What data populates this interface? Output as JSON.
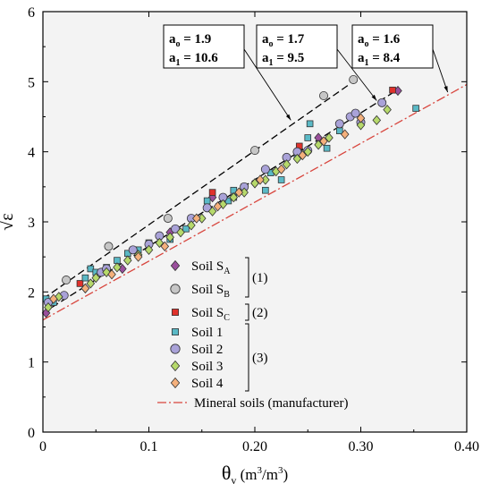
{
  "chart_data": {
    "type": "scatter",
    "xlabel_symbol": "θ",
    "xlabel_sub": "v",
    "xlabel_unit_open": " (m",
    "xlabel_unit_mid": "/m",
    "xlabel_unit_close": ")",
    "xlabel_sup": "3",
    "ylabel": "√ε",
    "xlim": [
      0,
      0.4
    ],
    "ylim": [
      0,
      6
    ],
    "xticks": [
      "0",
      "0.1",
      "0.20",
      "0.30",
      "0.40"
    ],
    "xtick_values": [
      0,
      0.1,
      0.2,
      0.3,
      0.4
    ],
    "yticks": [
      "0",
      "1",
      "2",
      "3",
      "4",
      "5",
      "6"
    ],
    "ytick_values": [
      0,
      1,
      2,
      3,
      4,
      5,
      6
    ],
    "background": "#f3f3f3",
    "series": [
      {
        "name": "Soil S",
        "sub": "A",
        "marker": "diamond",
        "color": "#9a4f9c",
        "points": [
          [
            0.003,
            1.7
          ],
          [
            0.075,
            2.33
          ],
          [
            0.12,
            2.85
          ],
          [
            0.16,
            3.35
          ],
          [
            0.2,
            3.55
          ],
          [
            0.26,
            4.2
          ],
          [
            0.335,
            4.87
          ]
        ]
      },
      {
        "name": "Soil S",
        "sub": "B",
        "marker": "circle",
        "color": "#c6c6c6",
        "points": [
          [
            0.022,
            2.17
          ],
          [
            0.062,
            2.65
          ],
          [
            0.118,
            3.05
          ],
          [
            0.2,
            4.02
          ],
          [
            0.265,
            4.8
          ],
          [
            0.293,
            5.03
          ]
        ]
      },
      {
        "name": "Soil S",
        "sub": "C",
        "marker": "square",
        "color": "#e0312b",
        "points": [
          [
            0.035,
            2.12
          ],
          [
            0.16,
            3.42
          ],
          [
            0.242,
            4.08
          ],
          [
            0.33,
            4.88
          ]
        ]
      },
      {
        "name": "Soil 1",
        "marker": "square",
        "color": "#5ab9c6",
        "points": [
          [
            0.003,
            1.9
          ],
          [
            0.01,
            1.85
          ],
          [
            0.04,
            2.2
          ],
          [
            0.045,
            2.33
          ],
          [
            0.05,
            2.28
          ],
          [
            0.06,
            2.35
          ],
          [
            0.07,
            2.45
          ],
          [
            0.08,
            2.55
          ],
          [
            0.09,
            2.6
          ],
          [
            0.1,
            2.7
          ],
          [
            0.12,
            2.75
          ],
          [
            0.135,
            2.9
          ],
          [
            0.155,
            3.3
          ],
          [
            0.175,
            3.3
          ],
          [
            0.18,
            3.45
          ],
          [
            0.19,
            3.5
          ],
          [
            0.21,
            3.45
          ],
          [
            0.215,
            3.7
          ],
          [
            0.24,
            3.95
          ],
          [
            0.25,
            4.2
          ],
          [
            0.252,
            4.4
          ],
          [
            0.268,
            4.05
          ],
          [
            0.28,
            4.3
          ],
          [
            0.352,
            4.62
          ],
          [
            0.18,
            3.35
          ],
          [
            0.225,
            3.6
          ]
        ]
      },
      {
        "name": "Soil 2",
        "marker": "circle",
        "color": "#a9a2d8",
        "points": [
          [
            0.005,
            1.85
          ],
          [
            0.02,
            1.95
          ],
          [
            0.055,
            2.28
          ],
          [
            0.06,
            2.33
          ],
          [
            0.085,
            2.6
          ],
          [
            0.1,
            2.68
          ],
          [
            0.11,
            2.8
          ],
          [
            0.125,
            2.9
          ],
          [
            0.14,
            3.05
          ],
          [
            0.155,
            3.2
          ],
          [
            0.17,
            3.35
          ],
          [
            0.19,
            3.5
          ],
          [
            0.21,
            3.75
          ],
          [
            0.23,
            3.92
          ],
          [
            0.24,
            4.0
          ],
          [
            0.25,
            4.02
          ],
          [
            0.28,
            4.4
          ],
          [
            0.29,
            4.5
          ],
          [
            0.295,
            4.55
          ],
          [
            0.3,
            4.42
          ],
          [
            0.32,
            4.7
          ]
        ]
      },
      {
        "name": "Soil 3",
        "marker": "diamond",
        "color": "#b6d96b",
        "points": [
          [
            0.005,
            1.78
          ],
          [
            0.015,
            1.93
          ],
          [
            0.04,
            2.05
          ],
          [
            0.045,
            2.12
          ],
          [
            0.05,
            2.2
          ],
          [
            0.06,
            2.28
          ],
          [
            0.07,
            2.35
          ],
          [
            0.08,
            2.45
          ],
          [
            0.09,
            2.53
          ],
          [
            0.1,
            2.6
          ],
          [
            0.11,
            2.7
          ],
          [
            0.12,
            2.78
          ],
          [
            0.13,
            2.85
          ],
          [
            0.14,
            2.95
          ],
          [
            0.15,
            3.05
          ],
          [
            0.16,
            3.15
          ],
          [
            0.17,
            3.25
          ],
          [
            0.18,
            3.35
          ],
          [
            0.19,
            3.42
          ],
          [
            0.2,
            3.55
          ],
          [
            0.21,
            3.6
          ],
          [
            0.22,
            3.72
          ],
          [
            0.23,
            3.82
          ],
          [
            0.24,
            3.9
          ],
          [
            0.25,
            4.0
          ],
          [
            0.26,
            4.1
          ],
          [
            0.27,
            4.2
          ],
          [
            0.3,
            4.38
          ],
          [
            0.315,
            4.45
          ],
          [
            0.325,
            4.6
          ]
        ]
      },
      {
        "name": "Soil 4",
        "marker": "diamond",
        "color": "#f4b07c",
        "points": [
          [
            0.01,
            1.9
          ],
          [
            0.04,
            2.05
          ],
          [
            0.065,
            2.25
          ],
          [
            0.09,
            2.5
          ],
          [
            0.115,
            2.65
          ],
          [
            0.145,
            3.05
          ],
          [
            0.165,
            3.22
          ],
          [
            0.185,
            3.42
          ],
          [
            0.205,
            3.6
          ],
          [
            0.225,
            3.75
          ],
          [
            0.245,
            3.95
          ],
          [
            0.265,
            4.15
          ],
          [
            0.285,
            4.25
          ],
          [
            0.3,
            4.48
          ]
        ]
      }
    ],
    "fit_lines": [
      {
        "x": [
          0,
          0.29
        ],
        "y": [
          1.9,
          4.97
        ],
        "color": "#000000",
        "dash": "long"
      },
      {
        "x": [
          0,
          0.33
        ],
        "y": [
          1.7,
          4.84
        ],
        "color": "#000000",
        "dash": "long"
      },
      {
        "name": "Mineral soils (manufacturer)",
        "x": [
          0,
          0.4
        ],
        "y": [
          1.6,
          4.96
        ],
        "color": "#d8453d",
        "dash": "dashdot"
      }
    ],
    "annotations": [
      {
        "a0": "1.9",
        "a1": "10.6",
        "arrow_to": [
          0.234,
          4.45
        ]
      },
      {
        "a0": "1.7",
        "a1": "9.5",
        "arrow_to": [
          0.315,
          4.73
        ]
      },
      {
        "a0": "1.6",
        "a1": "8.4",
        "arrow_to": [
          0.382,
          4.85
        ]
      }
    ],
    "annotation_labels": {
      "a": "a",
      "sub0": "o",
      "sub1": "1",
      "eq": " = "
    },
    "legend_groups": [
      {
        "label": "(1)",
        "start": 0,
        "end": 1
      },
      {
        "label": "(2)",
        "start": 2,
        "end": 2
      },
      {
        "label": "(3)",
        "start": 3,
        "end": 6
      }
    ]
  }
}
